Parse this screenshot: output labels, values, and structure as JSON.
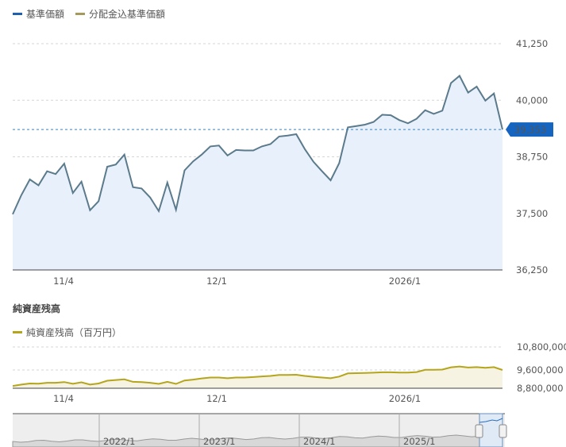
{
  "legend": {
    "nav_label": "基準価額",
    "nav_color": "#1f5fad",
    "adj_label": "分配金込基準価額",
    "adj_color": "#a59a5c"
  },
  "main_chart": {
    "current_value_label": "39,353",
    "badge_color": "#1565c0"
  },
  "aum_section": {
    "title": "純資産残高",
    "legend_label": "純資産残高（百万円）",
    "legend_color": "#b5a51c"
  },
  "navigator": {
    "year_labels": [
      "2022/1",
      "2023/1",
      "2024/1",
      "2025/1"
    ]
  },
  "chart_data": [
    {
      "type": "area",
      "title": "",
      "series": [
        {
          "name": "基準価額",
          "values": [
            37480,
            37900,
            38250,
            38120,
            38430,
            38370,
            38600,
            37950,
            38200,
            37570,
            37770,
            38530,
            38580,
            38800,
            38080,
            38050,
            37850,
            37550,
            38180,
            37580,
            38450,
            38650,
            38800,
            38980,
            39000,
            38780,
            38900,
            38890,
            38890,
            38980,
            39030,
            39200,
            39220,
            39250,
            38920,
            38640,
            38430,
            38230,
            38610,
            39400,
            39430,
            39460,
            39520,
            39680,
            39670,
            39560,
            39490,
            39590,
            39780,
            39700,
            39770,
            40380,
            40540,
            40170,
            40300,
            39990,
            40150,
            39353
          ]
        }
      ],
      "xlabel": "",
      "ylabel": "",
      "ylim": [
        36250,
        41250
      ],
      "yticks": [
        36250,
        37500,
        38750,
        40000,
        41250
      ],
      "ytick_labels": [
        "36,250",
        "37,500",
        "38,750",
        "40,000",
        "41,250"
      ],
      "xtick_labels": [
        "11/4",
        "12/1",
        "2026/1"
      ],
      "current_value": 39353,
      "grid": true
    },
    {
      "type": "area",
      "title": "純資産残高",
      "series": [
        {
          "name": "純資産残高（百万円）",
          "values": [
            8900000,
            8960000,
            9010000,
            9000000,
            9040000,
            9040000,
            9070000,
            9000000,
            9060000,
            8960000,
            9010000,
            9130000,
            9160000,
            9190000,
            9080000,
            9070000,
            9040000,
            8990000,
            9080000,
            8990000,
            9140000,
            9180000,
            9230000,
            9270000,
            9270000,
            9240000,
            9270000,
            9270000,
            9290000,
            9320000,
            9340000,
            9380000,
            9380000,
            9390000,
            9340000,
            9300000,
            9270000,
            9240000,
            9310000,
            9450000,
            9460000,
            9470000,
            9480000,
            9500000,
            9500000,
            9490000,
            9490000,
            9510000,
            9610000,
            9610000,
            9620000,
            9740000,
            9780000,
            9730000,
            9750000,
            9710000,
            9750000,
            9600000
          ]
        }
      ],
      "ylim": [
        8800000,
        10800000
      ],
      "ytick_labels": [
        "8,800,000",
        "9,600,000",
        "10,800,000"
      ],
      "xtick_labels": [
        "11/4",
        "12/1",
        "2026/1"
      ]
    }
  ]
}
